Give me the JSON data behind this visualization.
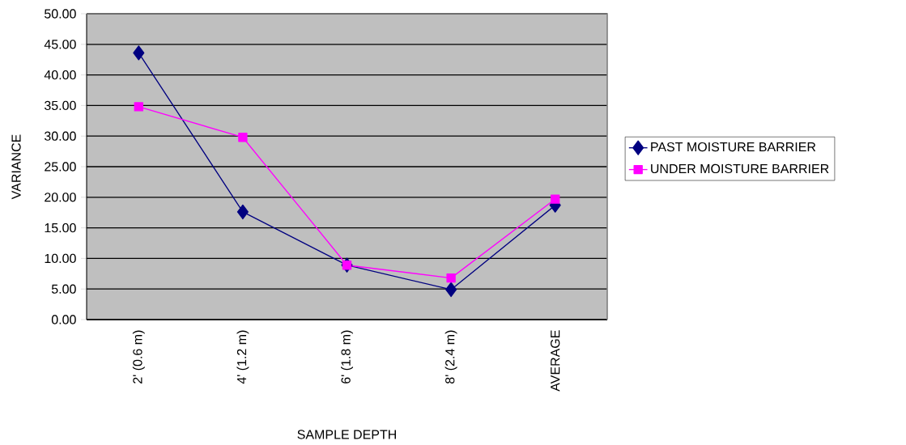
{
  "chart_data": {
    "type": "line",
    "xlabel": "SAMPLE DEPTH",
    "ylabel": "VARIANCE",
    "categories": [
      "2' (0.6 m)",
      "4' (1.2 m)",
      "6' (1.8 m)",
      "8' (2.4 m)",
      "AVERAGE"
    ],
    "series": [
      {
        "name": "PAST MOISTURE BARRIER",
        "color": "#000080",
        "marker": "diamond",
        "values": [
          43.6,
          17.6,
          8.9,
          4.9,
          18.7
        ]
      },
      {
        "name": "UNDER MOISTURE BARRIER",
        "color": "#ff00ff",
        "marker": "square",
        "values": [
          34.8,
          29.8,
          8.9,
          6.8,
          19.7
        ]
      }
    ],
    "ylim": [
      0,
      50
    ],
    "yticks": [
      {
        "value": 0,
        "label": "0.00"
      },
      {
        "value": 5,
        "label": "5.00"
      },
      {
        "value": 10,
        "label": "10.00"
      },
      {
        "value": 15,
        "label": "15.00"
      },
      {
        "value": 20,
        "label": "20.00"
      },
      {
        "value": 25,
        "label": "25.00"
      },
      {
        "value": 30,
        "label": "30.00"
      },
      {
        "value": 35,
        "label": "35.00"
      },
      {
        "value": 40,
        "label": "40.00"
      },
      {
        "value": 45,
        "label": "45.00"
      },
      {
        "value": 50,
        "label": "50.00"
      }
    ],
    "grid": "y",
    "legend": "right"
  }
}
